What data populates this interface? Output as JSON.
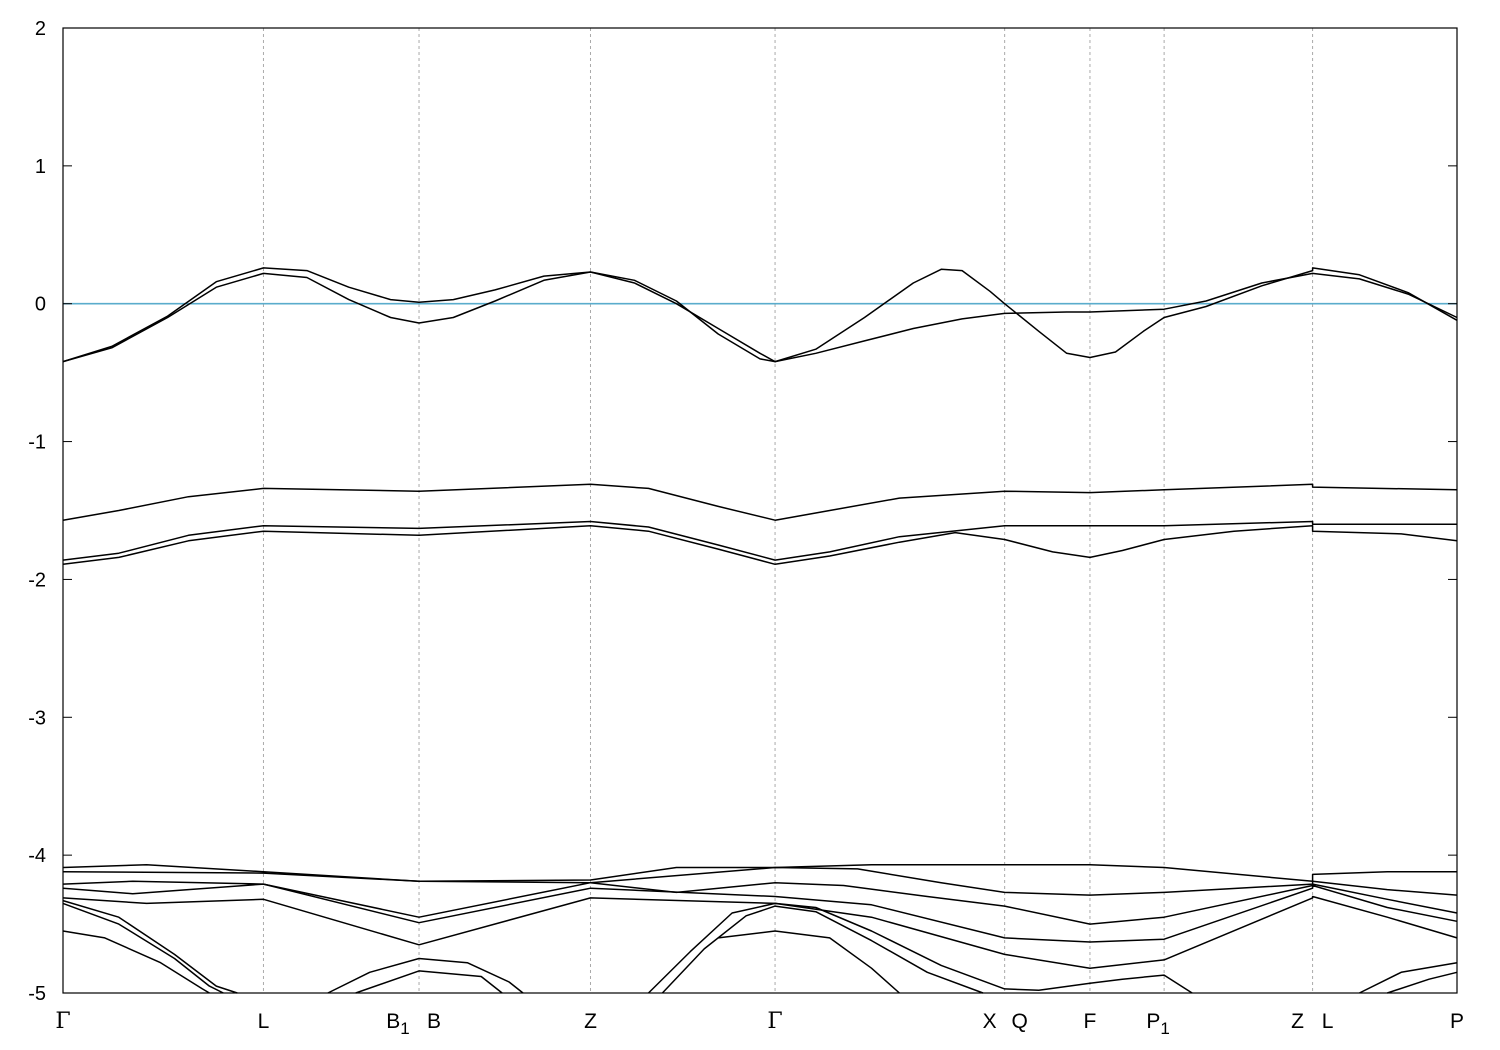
{
  "chart_data": {
    "type": "line",
    "title": "",
    "xlabel": "",
    "ylabel": "",
    "ylim": [
      -5,
      2
    ],
    "yticks": [
      "2",
      "1",
      "0",
      "-1",
      "-2",
      "-3",
      "-4",
      "-5"
    ],
    "fermi_level": 0,
    "fermi_color": "#5aaccc",
    "line_color": "#000000",
    "kpoints": [
      {
        "label": "Γ",
        "sub": "",
        "x": 0.0
      },
      {
        "label": "L",
        "sub": "",
        "x": 0.1438
      },
      {
        "label": "B",
        "sub": "1",
        "x": 0.2554
      },
      {
        "label": "B",
        "sub": "",
        "x": 0.2554
      },
      {
        "label": "Z",
        "sub": "",
        "x": 0.3784
      },
      {
        "label": "Γ",
        "sub": "",
        "x": 0.5108
      },
      {
        "label": "X",
        "sub": "",
        "x": 0.6755
      },
      {
        "label": "Q",
        "sub": "",
        "x": 0.6755
      },
      {
        "label": "F",
        "sub": "",
        "x": 0.7367
      },
      {
        "label": "P",
        "sub": "1",
        "x": 0.7899
      },
      {
        "label": "Z",
        "sub": "",
        "x": 0.8964
      },
      {
        "label": "L",
        "sub": "",
        "x": 0.8964
      },
      {
        "label": "P",
        "sub": "",
        "x": 1.0
      }
    ],
    "series": [
      {
        "values": [
          [
            0,
            -0.42
          ],
          [
            0.035,
            -0.32
          ],
          [
            0.075,
            -0.1
          ],
          [
            0.11,
            0.12
          ],
          [
            0.1438,
            0.22
          ],
          [
            0.175,
            0.19
          ],
          [
            0.205,
            0.03
          ],
          [
            0.235,
            -0.1
          ],
          [
            0.2554,
            -0.14
          ],
          [
            0.28,
            -0.1
          ],
          [
            0.31,
            0.02
          ],
          [
            0.345,
            0.17
          ],
          [
            0.3784,
            0.23
          ],
          [
            0.41,
            0.17
          ],
          [
            0.44,
            0.02
          ],
          [
            0.47,
            -0.22
          ],
          [
            0.5,
            -0.4
          ],
          [
            0.5108,
            -0.42
          ],
          [
            0.54,
            -0.36
          ],
          [
            0.575,
            -0.27
          ],
          [
            0.61,
            -0.18
          ],
          [
            0.645,
            -0.11
          ],
          [
            0.6755,
            -0.07
          ],
          [
            0.72,
            -0.06
          ],
          [
            0.7367,
            -0.06
          ],
          [
            0.7899,
            -0.04
          ],
          [
            0.82,
            0.02
          ],
          [
            0.86,
            0.15
          ],
          [
            0.8964,
            0.22
          ],
          [
            0.93,
            0.18
          ],
          [
            0.965,
            0.07
          ],
          [
            1.0,
            -0.1
          ]
        ]
      },
      {
        "values": [
          [
            0,
            -0.42
          ],
          [
            0.035,
            -0.31
          ],
          [
            0.075,
            -0.09
          ],
          [
            0.11,
            0.16
          ],
          [
            0.1438,
            0.26
          ],
          [
            0.175,
            0.24
          ],
          [
            0.205,
            0.12
          ],
          [
            0.235,
            0.03
          ],
          [
            0.2554,
            0.01
          ],
          [
            0.28,
            0.03
          ],
          [
            0.31,
            0.1
          ],
          [
            0.345,
            0.2
          ],
          [
            0.3784,
            0.23
          ],
          [
            0.41,
            0.15
          ],
          [
            0.44,
            0.0
          ],
          [
            0.47,
            -0.18
          ],
          [
            0.5,
            -0.36
          ],
          [
            0.5108,
            -0.42
          ],
          [
            0.54,
            -0.33
          ],
          [
            0.575,
            -0.1
          ],
          [
            0.61,
            0.15
          ],
          [
            0.63,
            0.25
          ],
          [
            0.645,
            0.24
          ],
          [
            0.665,
            0.09
          ],
          [
            0.6755,
            0.0
          ],
          [
            0.7,
            -0.2
          ],
          [
            0.72,
            -0.36
          ],
          [
            0.7367,
            -0.39
          ],
          [
            0.755,
            -0.35
          ],
          [
            0.775,
            -0.2
          ],
          [
            0.7899,
            -0.1
          ],
          [
            0.82,
            -0.02
          ],
          [
            0.86,
            0.13
          ],
          [
            0.8964,
            0.24
          ],
          [
            0.8964,
            0.26
          ],
          [
            0.93,
            0.21
          ],
          [
            0.965,
            0.08
          ],
          [
            1.0,
            -0.12
          ]
        ]
      },
      {
        "values": [
          [
            0,
            -1.57
          ],
          [
            0.04,
            -1.5
          ],
          [
            0.09,
            -1.4
          ],
          [
            0.1438,
            -1.34
          ],
          [
            0.2554,
            -1.36
          ],
          [
            0.3784,
            -1.31
          ],
          [
            0.42,
            -1.34
          ],
          [
            0.47,
            -1.47
          ],
          [
            0.5108,
            -1.57
          ],
          [
            0.55,
            -1.5
          ],
          [
            0.6,
            -1.41
          ],
          [
            0.6755,
            -1.36
          ],
          [
            0.7367,
            -1.37
          ],
          [
            0.7899,
            -1.35
          ],
          [
            0.8964,
            -1.31
          ],
          [
            0.8964,
            -1.33
          ],
          [
            1.0,
            -1.35
          ]
        ]
      },
      {
        "values": [
          [
            0,
            -1.86
          ],
          [
            0.04,
            -1.81
          ],
          [
            0.09,
            -1.68
          ],
          [
            0.1438,
            -1.61
          ],
          [
            0.2554,
            -1.63
          ],
          [
            0.3784,
            -1.58
          ],
          [
            0.42,
            -1.62
          ],
          [
            0.47,
            -1.75
          ],
          [
            0.5108,
            -1.86
          ],
          [
            0.55,
            -1.8
          ],
          [
            0.6,
            -1.69
          ],
          [
            0.6755,
            -1.61
          ],
          [
            0.7367,
            -1.61
          ],
          [
            0.7899,
            -1.61
          ],
          [
            0.8964,
            -1.58
          ],
          [
            0.8964,
            -1.6
          ],
          [
            1.0,
            -1.6
          ]
        ]
      },
      {
        "values": [
          [
            0,
            -1.89
          ],
          [
            0.04,
            -1.84
          ],
          [
            0.09,
            -1.72
          ],
          [
            0.1438,
            -1.65
          ],
          [
            0.2554,
            -1.68
          ],
          [
            0.3784,
            -1.61
          ],
          [
            0.42,
            -1.65
          ],
          [
            0.47,
            -1.78
          ],
          [
            0.5108,
            -1.89
          ],
          [
            0.55,
            -1.83
          ],
          [
            0.6,
            -1.73
          ],
          [
            0.64,
            -1.66
          ],
          [
            0.6755,
            -1.71
          ],
          [
            0.71,
            -1.8
          ],
          [
            0.7367,
            -1.84
          ],
          [
            0.76,
            -1.79
          ],
          [
            0.7899,
            -1.71
          ],
          [
            0.84,
            -1.65
          ],
          [
            0.8964,
            -1.61
          ],
          [
            0.8964,
            -1.65
          ],
          [
            0.96,
            -1.67
          ],
          [
            1.0,
            -1.72
          ]
        ]
      },
      {
        "values": [
          [
            0,
            -4.09
          ],
          [
            0.06,
            -4.07
          ],
          [
            0.1438,
            -4.12
          ],
          [
            0.2554,
            -4.19
          ],
          [
            0.3784,
            -4.18
          ],
          [
            0.44,
            -4.09
          ],
          [
            0.5108,
            -4.09
          ],
          [
            0.58,
            -4.07
          ],
          [
            0.6755,
            -4.07
          ],
          [
            0.7367,
            -4.07
          ],
          [
            0.7899,
            -4.09
          ],
          [
            0.8964,
            -4.19
          ],
          [
            0.8964,
            -4.14
          ],
          [
            0.95,
            -4.12
          ],
          [
            1.0,
            -4.12
          ]
        ]
      },
      {
        "values": [
          [
            0,
            -4.12
          ],
          [
            0.1438,
            -4.13
          ],
          [
            0.2554,
            -4.19
          ],
          [
            0.3784,
            -4.2
          ],
          [
            0.5108,
            -4.09
          ],
          [
            0.57,
            -4.1
          ],
          [
            0.63,
            -4.2
          ],
          [
            0.6755,
            -4.27
          ],
          [
            0.7367,
            -4.29
          ],
          [
            0.7899,
            -4.27
          ],
          [
            0.8964,
            -4.21
          ],
          [
            0.8964,
            -4.19
          ],
          [
            0.95,
            -4.25
          ],
          [
            1.0,
            -4.29
          ]
        ]
      },
      {
        "values": [
          [
            0,
            -4.21
          ],
          [
            0.05,
            -4.19
          ],
          [
            0.1438,
            -4.21
          ],
          [
            0.2554,
            -4.45
          ],
          [
            0.3784,
            -4.2
          ],
          [
            0.44,
            -4.27
          ],
          [
            0.5108,
            -4.2
          ],
          [
            0.56,
            -4.22
          ],
          [
            0.62,
            -4.3
          ],
          [
            0.6755,
            -4.37
          ],
          [
            0.7367,
            -4.5
          ],
          [
            0.7899,
            -4.45
          ],
          [
            0.8964,
            -4.22
          ],
          [
            0.8964,
            -4.21
          ],
          [
            0.95,
            -4.32
          ],
          [
            1.0,
            -4.42
          ]
        ]
      },
      {
        "values": [
          [
            0,
            -4.24
          ],
          [
            0.05,
            -4.28
          ],
          [
            0.1438,
            -4.21
          ],
          [
            0.2554,
            -4.49
          ],
          [
            0.3784,
            -4.24
          ],
          [
            0.5108,
            -4.3
          ],
          [
            0.58,
            -4.36
          ],
          [
            0.6755,
            -4.6
          ],
          [
            0.7367,
            -4.63
          ],
          [
            0.7899,
            -4.61
          ],
          [
            0.8964,
            -4.24
          ],
          [
            0.8964,
            -4.22
          ],
          [
            0.95,
            -4.38
          ],
          [
            1.0,
            -4.48
          ]
        ]
      },
      {
        "values": [
          [
            0,
            -4.31
          ],
          [
            0.06,
            -4.35
          ],
          [
            0.1438,
            -4.32
          ],
          [
            0.2554,
            -4.65
          ],
          [
            0.3784,
            -4.31
          ],
          [
            0.5108,
            -4.35
          ],
          [
            0.58,
            -4.45
          ],
          [
            0.6755,
            -4.72
          ],
          [
            0.7367,
            -4.82
          ],
          [
            0.7899,
            -4.76
          ],
          [
            0.8964,
            -4.31
          ],
          [
            0.8964,
            -4.3
          ],
          [
            0.95,
            -4.45
          ],
          [
            1.0,
            -4.6
          ]
        ]
      },
      {
        "values": [
          [
            0,
            -4.33
          ],
          [
            0.04,
            -4.45
          ],
          [
            0.08,
            -4.72
          ],
          [
            0.11,
            -4.95
          ],
          [
            0.125,
            -5.0
          ]
        ]
      },
      {
        "values": [
          [
            0,
            -4.35
          ],
          [
            0.04,
            -4.5
          ],
          [
            0.08,
            -4.75
          ],
          [
            0.105,
            -4.95
          ],
          [
            0.115,
            -5.0
          ]
        ]
      },
      {
        "values": [
          [
            0,
            -4.55
          ],
          [
            0.03,
            -4.6
          ],
          [
            0.07,
            -4.78
          ],
          [
            0.1,
            -4.97
          ],
          [
            0.105,
            -5.0
          ]
        ]
      },
      {
        "values": [
          [
            0.19,
            -5.0
          ],
          [
            0.22,
            -4.85
          ],
          [
            0.2554,
            -4.75
          ],
          [
            0.29,
            -4.78
          ],
          [
            0.32,
            -4.92
          ],
          [
            0.33,
            -5.0
          ]
        ]
      },
      {
        "values": [
          [
            0.21,
            -5.0
          ],
          [
            0.2554,
            -4.84
          ],
          [
            0.3,
            -4.88
          ],
          [
            0.315,
            -5.0
          ]
        ]
      },
      {
        "values": [
          [
            0.42,
            -5.0
          ],
          [
            0.45,
            -4.7
          ],
          [
            0.48,
            -4.42
          ],
          [
            0.5108,
            -4.35
          ],
          [
            0.54,
            -4.38
          ],
          [
            0.58,
            -4.55
          ],
          [
            0.63,
            -4.8
          ],
          [
            0.6755,
            -4.97
          ],
          [
            0.7,
            -4.98
          ],
          [
            0.7367,
            -4.93
          ],
          [
            0.76,
            -4.9
          ],
          [
            0.7899,
            -4.87
          ],
          [
            0.81,
            -5.0
          ]
        ]
      },
      {
        "values": [
          [
            0.43,
            -5.0
          ],
          [
            0.46,
            -4.68
          ],
          [
            0.49,
            -4.44
          ],
          [
            0.5108,
            -4.37
          ],
          [
            0.54,
            -4.41
          ],
          [
            0.58,
            -4.62
          ],
          [
            0.62,
            -4.85
          ],
          [
            0.66,
            -5.0
          ]
        ]
      },
      {
        "values": [
          [
            0.47,
            -4.6
          ],
          [
            0.5108,
            -4.55
          ],
          [
            0.55,
            -4.6
          ],
          [
            0.58,
            -4.82
          ],
          [
            0.6,
            -5.0
          ]
        ]
      },
      {
        "values": [
          [
            0.93,
            -5.0
          ],
          [
            0.96,
            -4.85
          ],
          [
            1.0,
            -4.78
          ]
        ]
      },
      {
        "values": [
          [
            0.95,
            -5.0
          ],
          [
            0.98,
            -4.9
          ],
          [
            1.0,
            -4.85
          ]
        ]
      }
    ]
  }
}
